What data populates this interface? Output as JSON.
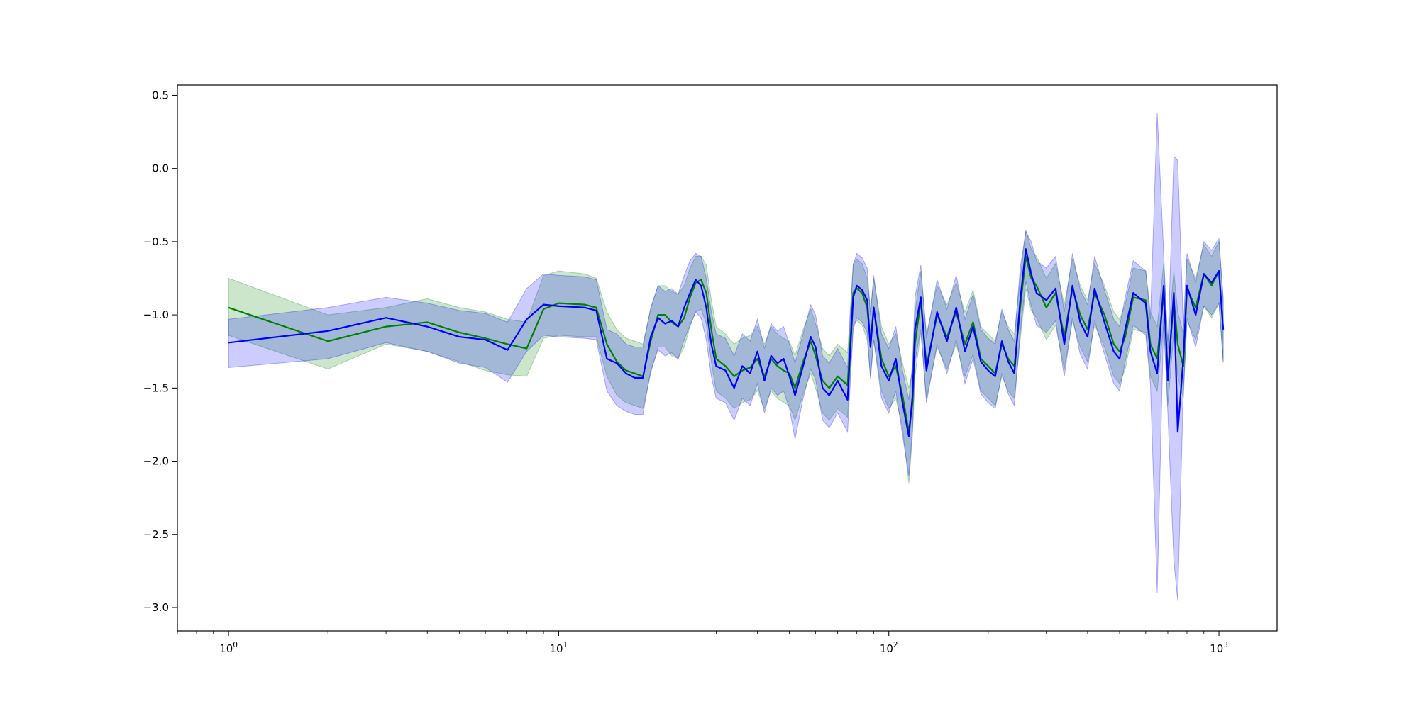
{
  "chart_data": {
    "type": "line",
    "title": "",
    "xlabel": "",
    "ylabel": "",
    "xscale": "log",
    "xlim": [
      0.7,
      1500
    ],
    "ylim": [
      -3.16,
      0.57
    ],
    "grid": false,
    "legend": null,
    "xticks": [
      {
        "value": 1,
        "base": "10",
        "exp": "0"
      },
      {
        "value": 10,
        "base": "10",
        "exp": "1"
      },
      {
        "value": 100,
        "base": "10",
        "exp": "2"
      },
      {
        "value": 1000,
        "base": "10",
        "exp": "3"
      }
    ],
    "yticks": [
      {
        "value": 0.5,
        "label": "0.5"
      },
      {
        "value": 0.0,
        "label": "0.0"
      },
      {
        "value": -0.5,
        "label": "−0.5"
      },
      {
        "value": -1.0,
        "label": "−1.0"
      },
      {
        "value": -1.5,
        "label": "−1.5"
      },
      {
        "value": -2.0,
        "label": "−2.0"
      },
      {
        "value": -2.5,
        "label": "−2.5"
      },
      {
        "value": -3.0,
        "label": "−3.0"
      }
    ],
    "series": [
      {
        "color": "#008000",
        "band_color": "#008000",
        "x": [
          1,
          2,
          3,
          4,
          5,
          6,
          7,
          8,
          9,
          10,
          12,
          13,
          14,
          15,
          16,
          17,
          18,
          19,
          20,
          21,
          22,
          23,
          24,
          25,
          26,
          27,
          28,
          29,
          30,
          32,
          34,
          36,
          38,
          40,
          42,
          44,
          46,
          48,
          50,
          52,
          55,
          58,
          60,
          63,
          66,
          70,
          75,
          78,
          80,
          83,
          86,
          88,
          90,
          95,
          100,
          105,
          110,
          115,
          118,
          120,
          125,
          130,
          140,
          150,
          160,
          170,
          180,
          190,
          200,
          210,
          220,
          230,
          240,
          250,
          260,
          270,
          280,
          300,
          320,
          340,
          360,
          380,
          400,
          420,
          450,
          480,
          500,
          520,
          550,
          600,
          620,
          650,
          680,
          700,
          730,
          750,
          780,
          800,
          850,
          900,
          950,
          1000,
          1030
        ],
        "y": [
          -0.95,
          -1.18,
          -1.08,
          -1.05,
          -1.12,
          -1.16,
          -1.2,
          -1.23,
          -0.96,
          -0.92,
          -0.93,
          -0.95,
          -1.2,
          -1.32,
          -1.38,
          -1.4,
          -1.42,
          -1.18,
          -1.0,
          -1.0,
          -1.05,
          -1.08,
          -1.02,
          -0.88,
          -0.78,
          -0.76,
          -0.85,
          -1.1,
          -1.3,
          -1.35,
          -1.42,
          -1.38,
          -1.36,
          -1.3,
          -1.42,
          -1.3,
          -1.35,
          -1.38,
          -1.4,
          -1.5,
          -1.32,
          -1.18,
          -1.28,
          -1.45,
          -1.5,
          -1.42,
          -1.48,
          -0.85,
          -0.82,
          -0.85,
          -0.95,
          -1.2,
          -0.95,
          -1.3,
          -1.42,
          -1.35,
          -1.55,
          -1.8,
          -1.6,
          -1.2,
          -0.9,
          -1.35,
          -1.0,
          -1.15,
          -0.98,
          -1.2,
          -1.05,
          -1.3,
          -1.35,
          -1.4,
          -1.2,
          -1.3,
          -1.35,
          -0.95,
          -0.6,
          -0.75,
          -0.8,
          -0.95,
          -0.85,
          -1.15,
          -0.82,
          -1.0,
          -1.1,
          -0.85,
          -1.0,
          -1.2,
          -1.25,
          -1.15,
          -0.88,
          -0.9,
          -1.2,
          -1.3,
          -0.85,
          -1.4,
          -0.9,
          -1.2,
          -1.35,
          -0.82,
          -0.95,
          -0.72,
          -0.8,
          -0.7,
          -1.1
        ]
      },
      {
        "color": "#0000ff",
        "band_color": "#0000ff",
        "x": [
          1,
          2,
          3,
          4,
          5,
          6,
          7,
          8,
          9,
          10,
          12,
          13,
          14,
          15,
          16,
          17,
          18,
          19,
          20,
          21,
          22,
          23,
          24,
          25,
          26,
          27,
          28,
          29,
          30,
          32,
          34,
          36,
          38,
          40,
          42,
          44,
          46,
          48,
          50,
          52,
          55,
          58,
          60,
          63,
          66,
          70,
          75,
          78,
          80,
          83,
          86,
          88,
          90,
          95,
          100,
          105,
          110,
          115,
          118,
          120,
          125,
          130,
          140,
          150,
          160,
          170,
          180,
          190,
          200,
          210,
          220,
          230,
          240,
          250,
          260,
          270,
          280,
          300,
          320,
          340,
          360,
          380,
          400,
          420,
          450,
          480,
          500,
          520,
          550,
          600,
          620,
          650,
          680,
          700,
          730,
          750,
          780,
          800,
          850,
          900,
          950,
          1000,
          1030
        ],
        "y": [
          -1.19,
          -1.11,
          -1.02,
          -1.08,
          -1.15,
          -1.17,
          -1.24,
          -1.03,
          -0.93,
          -0.94,
          -0.95,
          -0.97,
          -1.3,
          -1.33,
          -1.4,
          -1.43,
          -1.43,
          -1.15,
          -1.02,
          -1.06,
          -1.04,
          -1.08,
          -0.95,
          -0.85,
          -0.76,
          -0.8,
          -0.95,
          -1.2,
          -1.35,
          -1.38,
          -1.5,
          -1.35,
          -1.4,
          -1.25,
          -1.45,
          -1.28,
          -1.33,
          -1.3,
          -1.42,
          -1.55,
          -1.35,
          -1.15,
          -1.22,
          -1.5,
          -1.55,
          -1.45,
          -1.58,
          -0.88,
          -0.8,
          -0.83,
          -0.9,
          -1.22,
          -0.95,
          -1.35,
          -1.45,
          -1.3,
          -1.6,
          -1.83,
          -1.55,
          -1.1,
          -0.88,
          -1.38,
          -0.98,
          -1.18,
          -0.95,
          -1.25,
          -1.08,
          -1.32,
          -1.38,
          -1.42,
          -1.18,
          -1.32,
          -1.4,
          -0.9,
          -0.55,
          -0.72,
          -0.85,
          -0.9,
          -0.82,
          -1.2,
          -0.8,
          -1.05,
          -1.15,
          -0.82,
          -1.05,
          -1.25,
          -1.3,
          -1.1,
          -0.85,
          -0.92,
          -1.25,
          -1.4,
          -0.8,
          -1.45,
          -0.85,
          -1.8,
          -1.3,
          -0.8,
          -1.0,
          -0.72,
          -0.78,
          -0.7,
          -1.1
        ]
      }
    ],
    "bands": [
      {
        "color": "#008000",
        "x": [
          1,
          2,
          3,
          4,
          5,
          6,
          7,
          8,
          9,
          10,
          12,
          13,
          14,
          15,
          16,
          17,
          18,
          19,
          20,
          21,
          22,
          23,
          24,
          25,
          26,
          27,
          28,
          29,
          30,
          32,
          34,
          36,
          38,
          40,
          42,
          44,
          46,
          48,
          50,
          52,
          55,
          58,
          60,
          63,
          66,
          70,
          75,
          78,
          80,
          83,
          86,
          88,
          90,
          95,
          100,
          105,
          110,
          115,
          118,
          120,
          125,
          130,
          140,
          150,
          160,
          170,
          180,
          190,
          200,
          210,
          220,
          230,
          240,
          250,
          260,
          270,
          280,
          300,
          320,
          340,
          360,
          380,
          400,
          420,
          450,
          480,
          500,
          520,
          550,
          600,
          620,
          650,
          680,
          700,
          730,
          750,
          780,
          800,
          850,
          900,
          950,
          1000,
          1030
        ],
        "lower": [
          -1.14,
          -1.37,
          -1.2,
          -1.25,
          -1.32,
          -1.38,
          -1.41,
          -1.42,
          -1.16,
          -1.14,
          -1.15,
          -1.15,
          -1.42,
          -1.55,
          -1.6,
          -1.62,
          -1.64,
          -1.4,
          -1.22,
          -1.22,
          -1.28,
          -1.3,
          -1.22,
          -1.08,
          -0.98,
          -0.96,
          -1.06,
          -1.32,
          -1.52,
          -1.57,
          -1.64,
          -1.6,
          -1.58,
          -1.52,
          -1.64,
          -1.52,
          -1.57,
          -1.6,
          -1.62,
          -1.72,
          -1.54,
          -1.4,
          -1.5,
          -1.67,
          -1.72,
          -1.64,
          -1.7,
          -1.07,
          -1.04,
          -1.07,
          -1.17,
          -1.42,
          -1.17,
          -1.52,
          -1.64,
          -1.57,
          -1.77,
          -2.15,
          -1.82,
          -1.42,
          -1.12,
          -1.57,
          -1.22,
          -1.37,
          -1.2,
          -1.42,
          -1.27,
          -1.52,
          -1.57,
          -1.62,
          -1.42,
          -1.52,
          -1.57,
          -1.17,
          -0.82,
          -0.97,
          -1.02,
          -1.17,
          -1.07,
          -1.37,
          -1.04,
          -1.22,
          -1.32,
          -1.07,
          -1.22,
          -1.42,
          -1.47,
          -1.37,
          -1.1,
          -1.12,
          -1.42,
          -1.52,
          -1.07,
          -1.62,
          -1.12,
          -1.42,
          -1.57,
          -1.04,
          -1.17,
          -0.94,
          -1.02,
          -0.92,
          -1.32
        ],
        "upper": [
          -0.75,
          -1.0,
          -0.95,
          -0.89,
          -0.95,
          -0.98,
          -1.03,
          -1.05,
          -0.73,
          -0.7,
          -0.72,
          -0.75,
          -0.98,
          -1.1,
          -1.16,
          -1.18,
          -1.2,
          -0.96,
          -0.8,
          -0.8,
          -0.84,
          -0.86,
          -0.8,
          -0.68,
          -0.6,
          -0.6,
          -0.66,
          -0.9,
          -1.08,
          -1.13,
          -1.2,
          -1.16,
          -1.14,
          -1.08,
          -1.2,
          -1.08,
          -1.13,
          -1.16,
          -1.18,
          -1.28,
          -1.1,
          -0.96,
          -1.06,
          -1.23,
          -1.28,
          -1.2,
          -1.26,
          -0.65,
          -0.62,
          -0.65,
          -0.75,
          -0.98,
          -0.75,
          -1.08,
          -1.2,
          -1.13,
          -1.33,
          -1.5,
          -1.38,
          -0.98,
          -0.7,
          -1.13,
          -0.8,
          -0.93,
          -0.78,
          -0.98,
          -0.83,
          -1.08,
          -1.13,
          -1.18,
          -0.98,
          -1.08,
          -1.13,
          -0.75,
          -0.42,
          -0.55,
          -0.6,
          -0.75,
          -0.65,
          -0.93,
          -0.62,
          -0.8,
          -0.9,
          -0.65,
          -0.8,
          -0.98,
          -1.03,
          -0.93,
          -0.68,
          -0.7,
          -0.98,
          -1.08,
          -0.65,
          -1.18,
          -0.7,
          -0.98,
          -1.13,
          -0.62,
          -0.75,
          -0.52,
          -0.6,
          -0.5,
          -0.9
        ]
      },
      {
        "color": "#0000ff",
        "x": [
          1,
          2,
          3,
          4,
          5,
          6,
          7,
          8,
          9,
          10,
          12,
          13,
          14,
          15,
          16,
          17,
          18,
          19,
          20,
          21,
          22,
          23,
          24,
          25,
          26,
          27,
          28,
          29,
          30,
          32,
          34,
          36,
          38,
          40,
          42,
          44,
          46,
          48,
          50,
          52,
          55,
          58,
          60,
          63,
          66,
          70,
          75,
          78,
          80,
          83,
          86,
          88,
          90,
          95,
          100,
          105,
          110,
          115,
          118,
          120,
          125,
          130,
          140,
          150,
          160,
          170,
          180,
          190,
          200,
          210,
          220,
          230,
          240,
          250,
          260,
          270,
          280,
          300,
          320,
          340,
          360,
          380,
          400,
          420,
          450,
          480,
          500,
          520,
          550,
          600,
          620,
          650,
          680,
          700,
          730,
          750,
          780,
          800,
          850,
          900,
          950,
          1000,
          1030
        ],
        "lower": [
          -1.36,
          -1.3,
          -1.19,
          -1.25,
          -1.33,
          -1.36,
          -1.46,
          -1.25,
          -1.14,
          -1.15,
          -1.16,
          -1.17,
          -1.52,
          -1.62,
          -1.66,
          -1.68,
          -1.68,
          -1.38,
          -1.24,
          -1.28,
          -1.26,
          -1.3,
          -1.17,
          -1.07,
          -0.98,
          -1.02,
          -1.17,
          -1.42,
          -1.57,
          -1.6,
          -1.72,
          -1.57,
          -1.62,
          -1.47,
          -1.67,
          -1.5,
          -1.55,
          -1.52,
          -1.64,
          -1.85,
          -1.57,
          -1.37,
          -1.44,
          -1.72,
          -1.77,
          -1.67,
          -1.8,
          -1.1,
          -1.02,
          -1.05,
          -1.12,
          -1.44,
          -1.17,
          -1.57,
          -1.67,
          -1.52,
          -1.82,
          -2.1,
          -1.77,
          -1.32,
          -1.1,
          -1.6,
          -1.2,
          -1.4,
          -1.17,
          -1.47,
          -1.3,
          -1.54,
          -1.6,
          -1.64,
          -1.4,
          -1.54,
          -1.62,
          -1.12,
          -0.77,
          -0.94,
          -1.07,
          -1.12,
          -1.04,
          -1.42,
          -1.02,
          -1.27,
          -1.37,
          -1.04,
          -1.27,
          -1.47,
          -1.52,
          -1.32,
          -1.07,
          -1.14,
          -1.47,
          -2.9,
          -1.02,
          -1.67,
          -2.68,
          -2.95,
          -1.52,
          -1.02,
          -1.22,
          -0.94,
          -1.0,
          -0.92,
          -1.32
        ],
        "upper": [
          -1.03,
          -0.95,
          -0.88,
          -0.92,
          -0.97,
          -0.99,
          -1.05,
          -0.82,
          -0.72,
          -0.73,
          -0.74,
          -0.76,
          -1.1,
          -1.13,
          -1.2,
          -1.22,
          -1.22,
          -0.95,
          -0.8,
          -0.84,
          -0.82,
          -0.86,
          -0.73,
          -0.63,
          -0.58,
          -0.6,
          -0.75,
          -0.98,
          -1.13,
          -1.16,
          -1.28,
          -1.13,
          -1.18,
          -1.03,
          -1.23,
          -1.06,
          -1.11,
          -1.08,
          -1.2,
          -1.33,
          -1.13,
          -0.93,
          -1.0,
          -1.28,
          -1.33,
          -1.23,
          -1.36,
          -0.66,
          -0.58,
          -0.61,
          -0.68,
          -1.0,
          -0.73,
          -1.13,
          -1.23,
          -1.08,
          -1.38,
          -1.58,
          -1.33,
          -0.88,
          -0.66,
          -1.16,
          -0.76,
          -0.96,
          -0.73,
          -1.03,
          -0.86,
          -1.1,
          -1.16,
          -1.2,
          -0.96,
          -1.1,
          -1.18,
          -0.68,
          -0.43,
          -0.5,
          -0.63,
          -0.68,
          -0.6,
          -0.98,
          -0.58,
          -0.83,
          -0.93,
          -0.6,
          -0.83,
          -1.03,
          -1.08,
          -0.88,
          -0.63,
          -0.7,
          -1.03,
          0.38,
          -0.58,
          -1.23,
          0.08,
          0.06,
          -1.08,
          -0.58,
          -0.78,
          -0.5,
          -0.56,
          -0.48,
          -0.88
        ]
      }
    ]
  }
}
